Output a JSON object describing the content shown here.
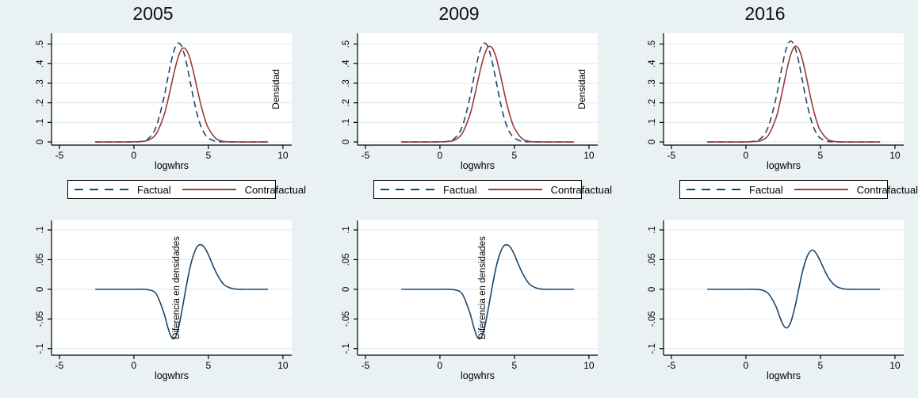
{
  "figure": {
    "background": "#e9f1f2",
    "plot_background": "#ffffff",
    "grid_color": "#e3edf0",
    "axis_color": "#000000",
    "text_color": "#000000"
  },
  "legend": {
    "items": [
      {
        "label": "Factual",
        "color": "#1a476f",
        "dashed": true
      },
      {
        "label": "Contrafactual",
        "color": "#9a3b3c",
        "dashed": false
      }
    ]
  },
  "chart_data": [
    {
      "id": "density-2005",
      "type": "line",
      "row": "top",
      "title": "2005",
      "xlabel": "logwhrs",
      "ylabel_right": "Densidad",
      "inner_label": "",
      "xlim": [
        -5.53,
        10.59
      ],
      "ylim": [
        -0.016,
        0.555
      ],
      "xticks": [
        -5,
        0,
        5,
        10
      ],
      "xtick_labels": [
        "-5",
        "0",
        "5",
        "10"
      ],
      "yticks": [
        0,
        0.1,
        0.2,
        0.3,
        0.4,
        0.5
      ],
      "ytick_labels": [
        "0",
        ".1",
        ".2",
        ".3",
        ".4",
        ".5"
      ],
      "grid": true,
      "legend_position": "below",
      "x": [
        -2.6,
        -2,
        -1.5,
        -1,
        -0.5,
        0,
        0.5,
        1,
        1.5,
        2,
        2.25,
        2.5,
        2.75,
        3,
        3.25,
        3.5,
        3.75,
        4,
        4.25,
        4.5,
        4.75,
        5,
        5.5,
        6,
        6.5,
        7,
        7.5,
        8,
        8.5,
        9
      ],
      "series": [
        {
          "name": "Factual",
          "color": "#1a476f",
          "dashed": true,
          "y": [
            0,
            0,
            0,
            0,
            0,
            0,
            0.003,
            0.019,
            0.079,
            0.222,
            0.318,
            0.411,
            0.48,
            0.505,
            0.48,
            0.411,
            0.318,
            0.222,
            0.14,
            0.079,
            0.041,
            0.019,
            0.003,
            0.001,
            0,
            0,
            0,
            0,
            0,
            0
          ]
        },
        {
          "name": "Contrafactual",
          "color": "#9a3b3c",
          "dashed": false,
          "y": [
            0,
            0,
            0,
            0,
            0,
            0.001,
            0.002,
            0.01,
            0.042,
            0.132,
            0.204,
            0.288,
            0.372,
            0.44,
            0.477,
            0.472,
            0.429,
            0.356,
            0.27,
            0.188,
            0.12,
            0.07,
            0.018,
            0.003,
            0.001,
            0,
            0,
            0,
            0,
            0
          ]
        }
      ]
    },
    {
      "id": "density-2009",
      "type": "line",
      "row": "top",
      "title": "2009",
      "xlabel": "logwhrs",
      "ylabel_right": "Densidad",
      "inner_label": "",
      "xlim": [
        -5.53,
        10.59
      ],
      "ylim": [
        -0.016,
        0.555
      ],
      "xticks": [
        -5,
        0,
        5,
        10
      ],
      "xtick_labels": [
        "-5",
        "0",
        "5",
        "10"
      ],
      "yticks": [
        0,
        0.1,
        0.2,
        0.3,
        0.4,
        0.5
      ],
      "ytick_labels": [
        "0",
        ".1",
        ".2",
        ".3",
        ".4",
        ".5"
      ],
      "grid": true,
      "legend_position": "below",
      "x": [
        -2.6,
        -2,
        -1.5,
        -1,
        -0.5,
        0,
        0.5,
        1,
        1.5,
        2,
        2.25,
        2.5,
        2.75,
        3,
        3.25,
        3.5,
        3.75,
        4,
        4.25,
        4.5,
        4.75,
        5,
        5.5,
        6,
        6.5,
        7,
        7.5,
        8,
        8.5,
        9
      ],
      "series": [
        {
          "name": "Factual",
          "color": "#1a476f",
          "dashed": true,
          "y": [
            0,
            0,
            0,
            0,
            0,
            0,
            0.003,
            0.019,
            0.079,
            0.222,
            0.318,
            0.411,
            0.48,
            0.505,
            0.48,
            0.411,
            0.318,
            0.222,
            0.14,
            0.079,
            0.041,
            0.019,
            0.003,
            0.001,
            0,
            0,
            0,
            0,
            0,
            0
          ]
        },
        {
          "name": "Contrafactual",
          "color": "#9a3b3c",
          "dashed": false,
          "y": [
            0,
            0,
            0,
            0,
            0,
            0.001,
            0.002,
            0.01,
            0.044,
            0.136,
            0.21,
            0.296,
            0.38,
            0.448,
            0.486,
            0.481,
            0.437,
            0.362,
            0.275,
            0.191,
            0.122,
            0.071,
            0.018,
            0.003,
            0.001,
            0,
            0,
            0,
            0,
            0
          ]
        }
      ]
    },
    {
      "id": "density-2016",
      "type": "line",
      "row": "top",
      "title": "2016",
      "xlabel": "logwhrs",
      "ylabel_right": "",
      "inner_label": "",
      "xlim": [
        -5.53,
        10.59
      ],
      "ylim": [
        -0.016,
        0.555
      ],
      "xticks": [
        -5,
        0,
        5,
        10
      ],
      "xtick_labels": [
        "-5",
        "0",
        "5",
        "10"
      ],
      "yticks": [
        0,
        0.1,
        0.2,
        0.3,
        0.4,
        0.5
      ],
      "ytick_labels": [
        "0",
        ".1",
        ".2",
        ".3",
        ".4",
        ".5"
      ],
      "grid": true,
      "legend_position": "below",
      "x": [
        -2.6,
        -2,
        -1.5,
        -1,
        -0.5,
        0,
        0.5,
        1,
        1.5,
        2,
        2.25,
        2.5,
        2.75,
        3,
        3.25,
        3.5,
        3.75,
        4,
        4.25,
        4.5,
        4.75,
        5,
        5.5,
        6,
        6.5,
        7,
        7.5,
        8,
        8.5,
        9
      ],
      "series": [
        {
          "name": "Factual",
          "color": "#1a476f",
          "dashed": true,
          "y": [
            0,
            0,
            0,
            0,
            0,
            0,
            0.003,
            0.018,
            0.077,
            0.218,
            0.315,
            0.412,
            0.487,
            0.515,
            0.492,
            0.425,
            0.33,
            0.232,
            0.147,
            0.083,
            0.042,
            0.019,
            0.003,
            0.001,
            0,
            0,
            0,
            0,
            0,
            0
          ]
        },
        {
          "name": "Contrafactual",
          "color": "#9a3b3c",
          "dashed": false,
          "y": [
            0,
            0,
            0,
            0,
            0,
            0,
            0.002,
            0.007,
            0.034,
            0.118,
            0.19,
            0.279,
            0.37,
            0.445,
            0.486,
            0.481,
            0.432,
            0.352,
            0.26,
            0.174,
            0.106,
            0.058,
            0.013,
            0.002,
            0,
            0,
            0,
            0,
            0,
            0
          ]
        }
      ]
    },
    {
      "id": "difference-2005",
      "type": "line",
      "row": "bottom",
      "title": "",
      "xlabel": "logwhrs",
      "ylabel_right": "",
      "inner_label": "Diferencia en densidades",
      "xlim": [
        -5.53,
        10.59
      ],
      "ylim": [
        -0.111,
        0.116
      ],
      "xticks": [
        -5,
        0,
        5,
        10
      ],
      "xtick_labels": [
        "-5",
        "0",
        "5",
        "10"
      ],
      "yticks": [
        -0.1,
        -0.05,
        0,
        0.05,
        0.1
      ],
      "ytick_labels": [
        "-.1",
        "-.05",
        "0",
        ".05",
        ".1"
      ],
      "grid": true,
      "legend_position": "none",
      "x": [
        -2.6,
        -2,
        -1.5,
        -1,
        -0.5,
        0,
        0.5,
        1,
        1.5,
        2,
        2.25,
        2.5,
        2.75,
        3,
        3.25,
        3.5,
        3.75,
        4,
        4.25,
        4.5,
        4.75,
        5,
        5.5,
        6,
        6.5,
        7,
        7.5,
        8,
        8.5,
        9
      ],
      "series": [
        {
          "name": "Diferencia",
          "color": "#1a476f",
          "dashed": false,
          "y": [
            0,
            0,
            0,
            0,
            0,
            0,
            0,
            -0.001,
            -0.008,
            -0.039,
            -0.062,
            -0.08,
            -0.082,
            -0.064,
            -0.032,
            0.003,
            0.035,
            0.058,
            0.072,
            0.075,
            0.07,
            0.058,
            0.029,
            0.009,
            0.002,
            0,
            0,
            0,
            0,
            0
          ]
        }
      ]
    },
    {
      "id": "difference-2009",
      "type": "line",
      "row": "bottom",
      "title": "",
      "xlabel": "logwhrs",
      "ylabel_right": "",
      "inner_label": "Diferencia en densidades",
      "xlim": [
        -5.53,
        10.59
      ],
      "ylim": [
        -0.111,
        0.116
      ],
      "xticks": [
        -5,
        0,
        5,
        10
      ],
      "xtick_labels": [
        "-5",
        "0",
        "5",
        "10"
      ],
      "yticks": [
        -0.1,
        -0.05,
        0,
        0.05,
        0.1
      ],
      "ytick_labels": [
        "-.1",
        "-.05",
        "0",
        ".05",
        ".1"
      ],
      "grid": true,
      "legend_position": "none",
      "x": [
        -2.6,
        -2,
        -1.5,
        -1,
        -0.5,
        0,
        0.5,
        1,
        1.5,
        2,
        2.25,
        2.5,
        2.75,
        3,
        3.25,
        3.5,
        3.75,
        4,
        4.25,
        4.5,
        4.75,
        5,
        5.5,
        6,
        6.5,
        7,
        7.5,
        8,
        8.5,
        9
      ],
      "series": [
        {
          "name": "Diferencia",
          "color": "#1a476f",
          "dashed": false,
          "y": [
            0,
            0,
            0,
            0,
            0,
            0,
            0,
            -0.001,
            -0.008,
            -0.039,
            -0.062,
            -0.08,
            -0.082,
            -0.064,
            -0.032,
            0.003,
            0.035,
            0.058,
            0.072,
            0.075,
            0.07,
            0.058,
            0.029,
            0.009,
            0.002,
            0,
            0,
            0,
            0,
            0
          ]
        }
      ]
    },
    {
      "id": "difference-2016",
      "type": "line",
      "row": "bottom",
      "title": "",
      "xlabel": "logwhrs",
      "ylabel_right": "",
      "inner_label": "",
      "xlim": [
        -5.53,
        10.59
      ],
      "ylim": [
        -0.111,
        0.116
      ],
      "xticks": [
        -5,
        0,
        5,
        10
      ],
      "xtick_labels": [
        "-5",
        "0",
        "5",
        "10"
      ],
      "yticks": [
        -0.1,
        -0.05,
        0,
        0.05,
        0.1
      ],
      "ytick_labels": [
        "-.1",
        "-.05",
        "0",
        ".05",
        ".1"
      ],
      "grid": true,
      "legend_position": "none",
      "x": [
        -2.6,
        -2,
        -1.5,
        -1,
        -0.5,
        0,
        0.5,
        1,
        1.5,
        2,
        2.25,
        2.5,
        2.75,
        3,
        3.25,
        3.5,
        3.75,
        4,
        4.25,
        4.5,
        4.75,
        5,
        5.5,
        6,
        6.5,
        7,
        7.5,
        8,
        8.5,
        9
      ],
      "series": [
        {
          "name": "Diferencia",
          "color": "#1a476f",
          "dashed": false,
          "y": [
            0,
            0,
            0,
            0,
            0,
            0,
            0,
            -0.001,
            -0.007,
            -0.028,
            -0.045,
            -0.06,
            -0.065,
            -0.056,
            -0.034,
            -0.005,
            0.025,
            0.048,
            0.062,
            0.066,
            0.059,
            0.047,
            0.021,
            0.006,
            0.001,
            0,
            0,
            0,
            0,
            0
          ]
        }
      ]
    }
  ]
}
